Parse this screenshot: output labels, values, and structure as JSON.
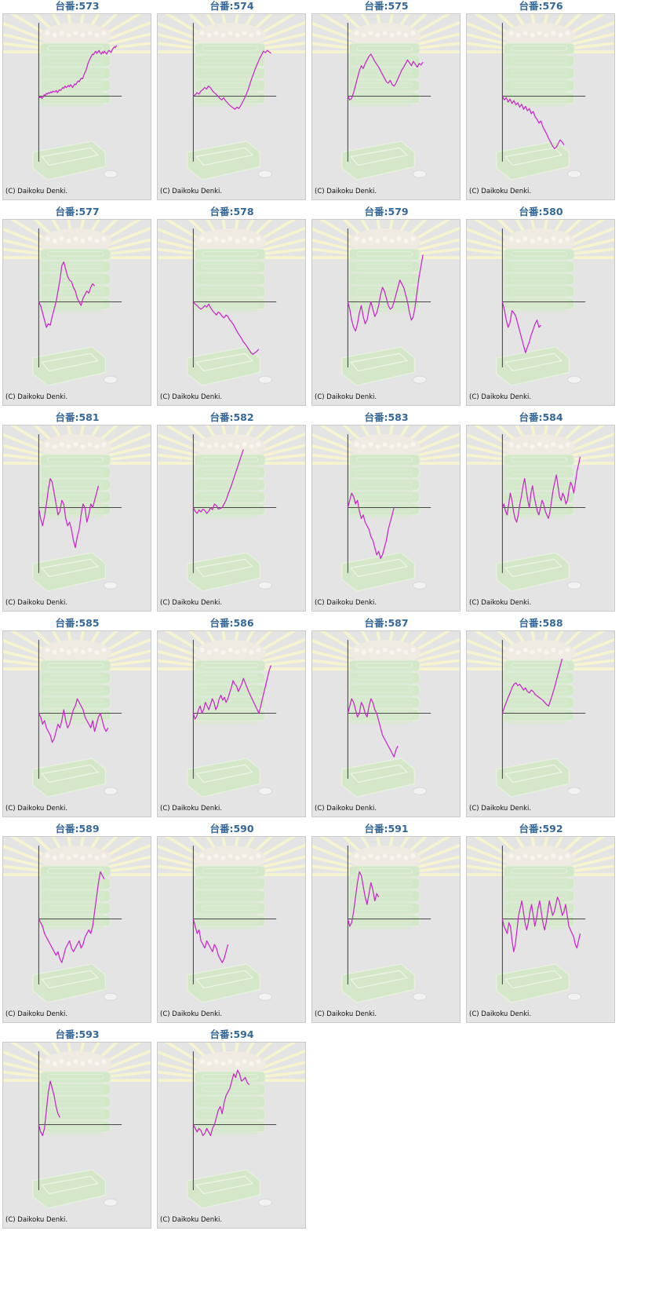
{
  "colors": {
    "title": "#336699",
    "line": "#cc22cc",
    "axis": "#333333",
    "panel_bg": "#e4e4e4"
  },
  "chart_data": [
    {
      "type": "line",
      "title": "台番:573",
      "copyright": "(C) Daikoku Denki.",
      "values": [
        0,
        -2,
        -1,
        -3,
        -1,
        2,
        1,
        4,
        3,
        5,
        4,
        6,
        5,
        7,
        6,
        6,
        8,
        5,
        7,
        9,
        8,
        10,
        12,
        11,
        14,
        12,
        13,
        15,
        13,
        16,
        14,
        12,
        15,
        17,
        16,
        19,
        21,
        20,
        23,
        25,
        24,
        28,
        32,
        35,
        40,
        45,
        49,
        52,
        55,
        58,
        57,
        60,
        62,
        59,
        61,
        63,
        60,
        58,
        61,
        59,
        62,
        60,
        58,
        61,
        63,
        62,
        60,
        64,
        66,
        68,
        67,
        70
      ]
    },
    {
      "type": "line",
      "title": "台番:574",
      "copyright": "(C) Daikoku Denki.",
      "values": [
        0,
        2,
        5,
        3,
        7,
        9,
        12,
        10,
        14,
        12,
        8,
        5,
        3,
        0,
        -3,
        -5,
        -2,
        -6,
        -9,
        -12,
        -14,
        -16,
        -18,
        -15,
        -17,
        -13,
        -8,
        -3,
        3,
        10,
        18,
        26,
        33,
        40,
        46,
        52,
        57,
        62,
        60,
        63,
        61,
        59
      ]
    },
    {
      "type": "line",
      "title": "台番:575",
      "copyright": "(C) Daikoku Denki.",
      "values": [
        0,
        -5,
        -3,
        5,
        15,
        25,
        35,
        42,
        38,
        45,
        50,
        55,
        58,
        53,
        48,
        44,
        40,
        35,
        30,
        25,
        20,
        18,
        22,
        16,
        14,
        18,
        24,
        30,
        36,
        40,
        45,
        50,
        46,
        42,
        48,
        44,
        40,
        45,
        43,
        47
      ]
    },
    {
      "type": "line",
      "title": "台番:576",
      "copyright": "(C) Daikoku Denki.",
      "values": [
        0,
        -5,
        -2,
        -8,
        -4,
        -10,
        -6,
        -12,
        -9,
        -15,
        -11,
        -18,
        -14,
        -20,
        -17,
        -24,
        -21,
        -28,
        -32,
        -37,
        -34,
        -42,
        -47,
        -52,
        -58,
        -63,
        -68,
        -72,
        -70,
        -65,
        -60,
        -63,
        -67
      ]
    },
    {
      "type": "line",
      "title": "台番:577",
      "copyright": "(C) Daikoku Denki.",
      "values": [
        0,
        -5,
        -15,
        -25,
        -35,
        -30,
        -32,
        -20,
        -10,
        0,
        15,
        30,
        50,
        55,
        45,
        35,
        30,
        28,
        20,
        15,
        5,
        0,
        -5,
        5,
        10,
        15,
        12,
        20,
        25,
        22
      ]
    },
    {
      "type": "line",
      "title": "台番:578",
      "copyright": "(C) Daikoku Denki.",
      "values": [
        0,
        -3,
        -5,
        -8,
        -10,
        -8,
        -5,
        -7,
        -3,
        -8,
        -12,
        -15,
        -18,
        -14,
        -16,
        -20,
        -22,
        -18,
        -20,
        -25,
        -28,
        -32,
        -37,
        -42,
        -46,
        -50,
        -55,
        -58,
        -62,
        -66,
        -70,
        -72,
        -70,
        -68,
        -65
      ]
    },
    {
      "type": "line",
      "title": "台番:579",
      "copyright": "(C) Daikoku Denki.",
      "values": [
        0,
        -10,
        -25,
        -35,
        -40,
        -30,
        -15,
        -5,
        -20,
        -30,
        -25,
        -10,
        0,
        -10,
        -20,
        -15,
        -5,
        10,
        20,
        15,
        5,
        -5,
        -10,
        -8,
        0,
        10,
        20,
        30,
        25,
        20,
        10,
        0,
        -15,
        -25,
        -20,
        -5,
        15,
        35,
        50,
        65
      ]
    },
    {
      "type": "line",
      "title": "台番:580",
      "copyright": "(C) Daikoku Denki.",
      "values": [
        0,
        -10,
        -25,
        -35,
        -28,
        -12,
        -15,
        -20,
        -30,
        -40,
        -50,
        -60,
        -70,
        -62,
        -55,
        -45,
        -38,
        -30,
        -25,
        -35,
        -32
      ]
    },
    {
      "type": "line",
      "title": "台番:581",
      "copyright": "(C) Daikoku Denki.",
      "values": [
        0,
        -15,
        -25,
        -12,
        5,
        25,
        40,
        35,
        20,
        5,
        -10,
        -5,
        10,
        5,
        -15,
        -25,
        -20,
        -30,
        -45,
        -55,
        -40,
        -30,
        -10,
        5,
        0,
        -20,
        -10,
        5,
        0,
        10,
        20,
        30
      ]
    },
    {
      "type": "line",
      "title": "台番:582",
      "copyright": "(C) Daikoku Denki.",
      "values": [
        0,
        -5,
        -8,
        -3,
        -6,
        -2,
        -4,
        -8,
        -5,
        0,
        -3,
        5,
        3,
        -2,
        -1,
        0,
        5,
        10,
        18,
        25,
        32,
        40,
        48,
        56,
        64,
        72,
        80
      ]
    },
    {
      "type": "line",
      "title": "台番:583",
      "copyright": "(C) Daikoku Denki.",
      "values": [
        0,
        10,
        20,
        15,
        5,
        10,
        -5,
        -15,
        -10,
        -20,
        -25,
        -30,
        -40,
        -45,
        -55,
        -65,
        -60,
        -70,
        -65,
        -55,
        -45,
        -30,
        -20,
        -10,
        0
      ]
    },
    {
      "type": "line",
      "title": "台番:584",
      "copyright": "(C) Daikoku Denki.",
      "values": [
        0,
        5,
        -5,
        -10,
        5,
        20,
        10,
        -5,
        -15,
        -20,
        -10,
        5,
        15,
        30,
        40,
        25,
        10,
        0,
        20,
        30,
        15,
        5,
        -5,
        -10,
        0,
        10,
        5,
        -5,
        -10,
        -15,
        -5,
        10,
        25,
        35,
        45,
        30,
        15,
        10,
        20,
        15,
        5,
        10,
        25,
        35,
        30,
        20,
        35,
        50,
        60,
        70
      ]
    },
    {
      "type": "line",
      "title": "台番:585",
      "copyright": "(C) Daikoku Denki.",
      "values": [
        0,
        -5,
        -15,
        -10,
        -20,
        -25,
        -30,
        -40,
        -35,
        -25,
        -15,
        -20,
        -10,
        5,
        -10,
        -20,
        -15,
        -5,
        5,
        10,
        20,
        15,
        10,
        5,
        -5,
        -10,
        -15,
        -20,
        -10,
        -25,
        -15,
        -5,
        0,
        -10,
        -20,
        -25,
        -20
      ]
    },
    {
      "type": "line",
      "title": "台番:586",
      "copyright": "(C) Daikoku Denki.",
      "values": [
        0,
        -8,
        -4,
        5,
        10,
        0,
        5,
        15,
        10,
        5,
        12,
        20,
        15,
        5,
        10,
        20,
        25,
        18,
        22,
        15,
        20,
        28,
        35,
        45,
        40,
        38,
        30,
        35,
        40,
        48,
        42,
        36,
        30,
        25,
        20,
        15,
        10,
        5,
        0,
        10,
        20,
        30,
        40,
        50,
        60,
        66
      ]
    },
    {
      "type": "line",
      "title": "台番:587",
      "copyright": "(C) Daikoku Denki.",
      "values": [
        0,
        10,
        20,
        15,
        5,
        -5,
        0,
        15,
        10,
        0,
        -5,
        10,
        20,
        15,
        5,
        0,
        -10,
        -20,
        -30,
        -35,
        -40,
        -45,
        -50,
        -55,
        -60,
        -50,
        -45
      ]
    },
    {
      "type": "line",
      "title": "台番:588",
      "copyright": "(C) Daikoku Denki.",
      "values": [
        0,
        8,
        15,
        22,
        28,
        35,
        40,
        42,
        38,
        40,
        36,
        32,
        35,
        30,
        28,
        32,
        30,
        26,
        24,
        22,
        20,
        18,
        15,
        12,
        10,
        18,
        26,
        35,
        45,
        55,
        65,
        75
      ]
    },
    {
      "type": "line",
      "title": "台番:589",
      "copyright": "(C) Daikoku Denki.",
      "values": [
        0,
        -5,
        -10,
        -20,
        -25,
        -30,
        -35,
        -40,
        -45,
        -50,
        -45,
        -55,
        -60,
        -50,
        -40,
        -35,
        -30,
        -40,
        -45,
        -40,
        -35,
        -30,
        -40,
        -35,
        -25,
        -20,
        -15,
        -20,
        -10,
        10,
        30,
        50,
        65,
        60,
        55
      ]
    },
    {
      "type": "line",
      "title": "台番:590",
      "copyright": "(C) Daikoku Denki.",
      "values": [
        0,
        -10,
        -20,
        -15,
        -30,
        -35,
        -40,
        -30,
        -35,
        -40,
        -45,
        -35,
        -40,
        -50,
        -55,
        -60,
        -55,
        -45,
        -35
      ]
    },
    {
      "type": "line",
      "title": "台番:591",
      "copyright": "(C) Daikoku Denki.",
      "values": [
        0,
        -10,
        -5,
        10,
        30,
        50,
        65,
        60,
        45,
        30,
        20,
        35,
        50,
        40,
        25,
        35,
        30
      ]
    },
    {
      "type": "line",
      "title": "台番:592",
      "copyright": "(C) Daikoku Denki.",
      "values": [
        0,
        -10,
        -15,
        -20,
        -5,
        -10,
        -30,
        -45,
        -35,
        -15,
        5,
        15,
        25,
        10,
        -5,
        -15,
        -5,
        10,
        20,
        5,
        -10,
        0,
        15,
        25,
        10,
        -5,
        -15,
        -5,
        10,
        25,
        15,
        5,
        10,
        20,
        30,
        25,
        15,
        5,
        10,
        20,
        5,
        -10,
        -15,
        -20,
        -25,
        -35,
        -40,
        -30,
        -20
      ]
    },
    {
      "type": "line",
      "title": "台番:593",
      "copyright": "(C) Daikoku Denki.",
      "values": [
        0,
        -10,
        -15,
        -5,
        20,
        45,
        60,
        50,
        40,
        25,
        15,
        10
      ]
    },
    {
      "type": "line",
      "title": "台番:594",
      "copyright": "(C) Daikoku Denki.",
      "values": [
        0,
        -5,
        -10,
        -5,
        -8,
        -15,
        -12,
        -5,
        -10,
        -15,
        -5,
        0,
        10,
        20,
        25,
        15,
        30,
        40,
        45,
        50,
        60,
        70,
        65,
        75,
        70,
        60,
        62,
        65,
        58,
        55
      ]
    }
  ]
}
